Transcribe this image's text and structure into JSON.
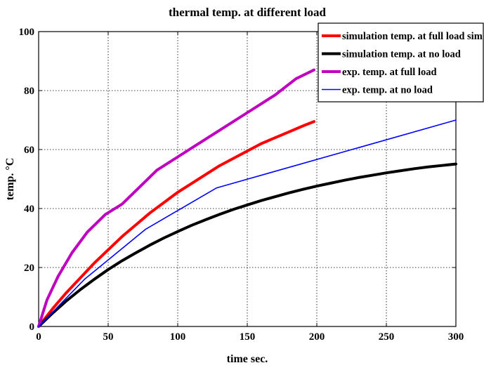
{
  "chart_data": {
    "type": "line",
    "title": "thermal temp. at different load",
    "xlabel": "time sec.",
    "ylabel": "temp. °C",
    "xlim": [
      0,
      300
    ],
    "ylim": [
      0,
      100
    ],
    "xticks": [
      0,
      50,
      100,
      150,
      200,
      250,
      300
    ],
    "yticks": [
      0,
      20,
      40,
      60,
      80,
      100
    ],
    "grid": true,
    "legend_position": "top-right",
    "series": [
      {
        "name": "simulation temp. at full load sim",
        "color": "#ff0000",
        "x": [
          0,
          10,
          20,
          30,
          40,
          50,
          60,
          70,
          80,
          90,
          100,
          110,
          120,
          130,
          140,
          150,
          160,
          170,
          180,
          190,
          198
        ],
        "y": [
          0,
          6,
          11.5,
          16.5,
          21.5,
          26,
          30.5,
          34.5,
          38.5,
          42,
          45.5,
          48.5,
          51.5,
          54.5,
          57,
          59.5,
          62,
          64,
          66,
          68,
          69.5
        ]
      },
      {
        "name": "simulation temp. at no load",
        "color": "#000000",
        "x": [
          0,
          10,
          20,
          30,
          40,
          50,
          60,
          70,
          80,
          90,
          100,
          110,
          120,
          130,
          140,
          150,
          160,
          170,
          180,
          190,
          200,
          210,
          220,
          230,
          240,
          250,
          260,
          270,
          280,
          290,
          300
        ],
        "y": [
          0,
          4.5,
          8.7,
          12.5,
          16,
          19.3,
          22.3,
          25,
          27.6,
          30,
          32.2,
          34.3,
          36.2,
          38,
          39.7,
          41.2,
          42.7,
          44,
          45.3,
          46.5,
          47.6,
          48.6,
          49.6,
          50.5,
          51.3,
          52.1,
          52.8,
          53.5,
          54.1,
          54.6,
          55.1
        ]
      },
      {
        "name": "exp. temp. at full load",
        "color": "#bf00bf",
        "x": [
          0,
          6,
          14,
          24,
          35,
          48,
          60,
          72,
          85,
          100,
          115,
          130,
          150,
          170,
          185,
          198
        ],
        "y": [
          0,
          9,
          17,
          25,
          32,
          38,
          41.5,
          47,
          53,
          57.5,
          62,
          66.5,
          72.5,
          78.5,
          84,
          87
        ]
      },
      {
        "name": "exp. temp. at no load",
        "color": "#0000ff",
        "x": [
          0,
          33,
          77,
          128,
          300
        ],
        "y": [
          0,
          16,
          33,
          47,
          70
        ]
      }
    ]
  }
}
